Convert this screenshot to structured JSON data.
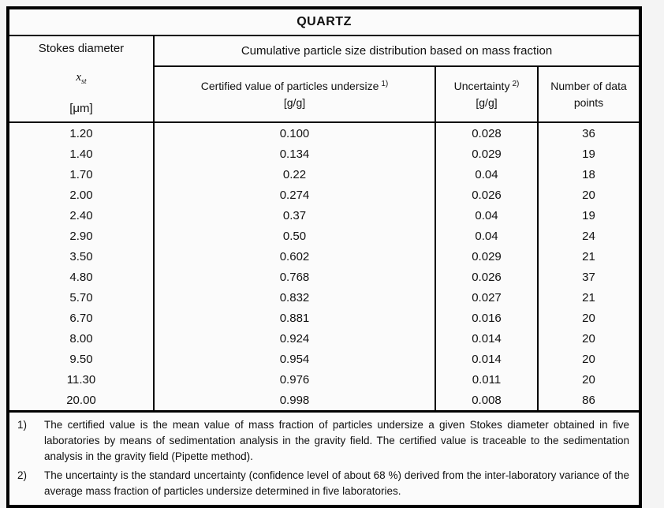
{
  "title": "QUARTZ",
  "table": {
    "col1": {
      "header": "Stokes diameter",
      "symbol": "x",
      "symbol_sub": "st",
      "unit": "[μm]"
    },
    "span_header": "Cumulative particle size distribution based on mass fraction",
    "col2": {
      "header": "Certified value of particles undersize",
      "footnote_ref": "1)",
      "unit": "[g/g]"
    },
    "col3": {
      "header": "Uncertainty",
      "footnote_ref": "2)",
      "unit": "[g/g]"
    },
    "col4": {
      "header": "Number of data points"
    },
    "rows": [
      {
        "diameter": "1.20",
        "certified": "0.100",
        "uncertainty": "0.028",
        "points": "36"
      },
      {
        "diameter": "1.40",
        "certified": "0.134",
        "uncertainty": "0.029",
        "points": "19"
      },
      {
        "diameter": "1.70",
        "certified": "0.22",
        "uncertainty": "0.04",
        "points": "18"
      },
      {
        "diameter": "2.00",
        "certified": "0.274",
        "uncertainty": "0.026",
        "points": "20"
      },
      {
        "diameter": "2.40",
        "certified": "0.37",
        "uncertainty": "0.04",
        "points": "19"
      },
      {
        "diameter": "2.90",
        "certified": "0.50",
        "uncertainty": "0.04",
        "points": "24"
      },
      {
        "diameter": "3.50",
        "certified": "0.602",
        "uncertainty": "0.029",
        "points": "21"
      },
      {
        "diameter": "4.80",
        "certified": "0.768",
        "uncertainty": "0.026",
        "points": "37"
      },
      {
        "diameter": "5.70",
        "certified": "0.832",
        "uncertainty": "0.027",
        "points": "21"
      },
      {
        "diameter": "6.70",
        "certified": "0.881",
        "uncertainty": "0.016",
        "points": "20"
      },
      {
        "diameter": "8.00",
        "certified": "0.924",
        "uncertainty": "0.014",
        "points": "20"
      },
      {
        "diameter": "9.50",
        "certified": "0.954",
        "uncertainty": "0.014",
        "points": "20"
      },
      {
        "diameter": "11.30",
        "certified": "0.976",
        "uncertainty": "0.011",
        "points": "20"
      },
      {
        "diameter": "20.00",
        "certified": "0.998",
        "uncertainty": "0.008",
        "points": "86"
      }
    ]
  },
  "footnotes": [
    {
      "marker": "1)",
      "text": "The certified value is the mean value of mass fraction of particles undersize a given Stokes diameter obtained in five laboratories by means of sedimentation analysis in the gravity field. The certified value is traceable to the sedimentation analysis in the gravity field (Pipette method)."
    },
    {
      "marker": "2)",
      "text": "The uncertainty is the standard uncertainty (confidence level of about 68 %) derived from the inter-laboratory variance of the average mass fraction of particles undersize determined in five laboratories."
    }
  ],
  "colors": {
    "border": "#000000",
    "page_background": "#f4f4f4",
    "cell_background": "#fbfbfb",
    "text": "#111111"
  }
}
